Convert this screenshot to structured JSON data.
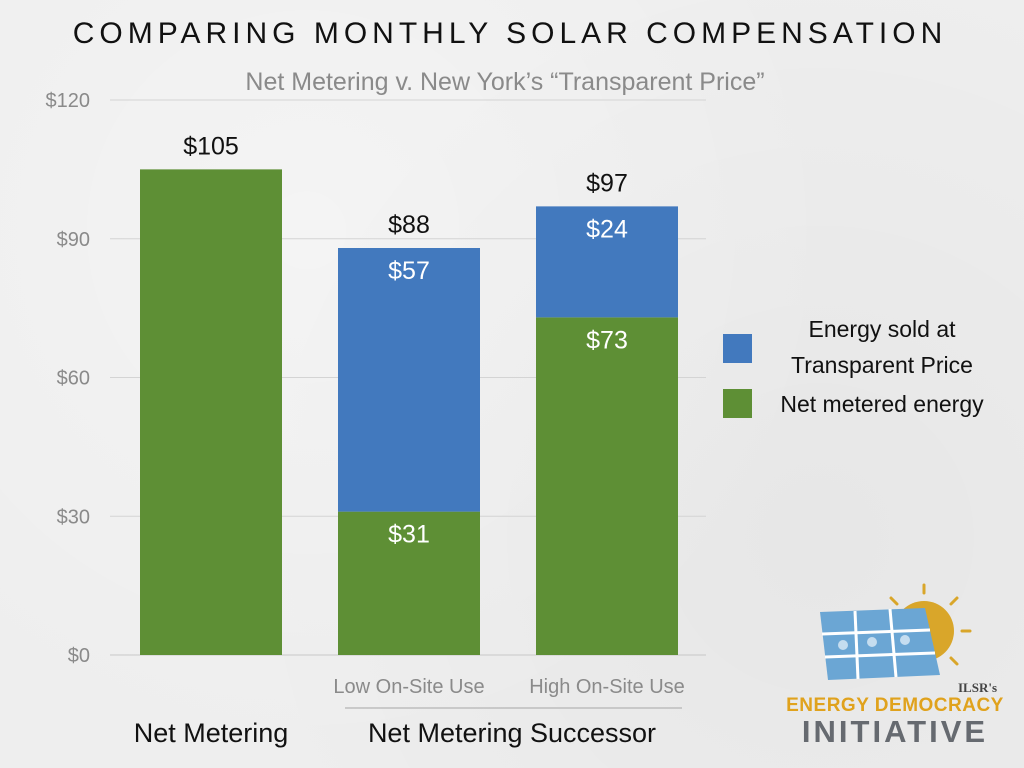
{
  "chart_data": {
    "type": "bar",
    "stacked": true,
    "title": "COMPARING MONTHLY SOLAR COMPENSATION",
    "subtitle": "Net Metering v. New York’s “Transparent Price”",
    "ylim": [
      0,
      120
    ],
    "yticks": [
      "$0",
      "$30",
      "$60",
      "$90",
      "$120"
    ],
    "ytick_values": [
      0,
      30,
      60,
      90,
      120
    ],
    "grid": true,
    "legend_position": "right",
    "bars": [
      {
        "group": "Net Metering",
        "sublabel": "",
        "total": 105,
        "total_label": "$105",
        "segments": [
          {
            "series": "Net metered energy",
            "value": 105,
            "label": ""
          }
        ]
      },
      {
        "group": "Net Metering Successor",
        "sublabel": "Low On-Site Use",
        "total": 88,
        "total_label": "$88",
        "segments": [
          {
            "series": "Net metered energy",
            "value": 31,
            "label": "$31"
          },
          {
            "series": "Energy sold at Transparent Price",
            "value": 57,
            "label": "$57"
          }
        ]
      },
      {
        "group": "Net Metering Successor",
        "sublabel": "High On-Site Use",
        "total": 97,
        "total_label": "$97",
        "segments": [
          {
            "series": "Net metered energy",
            "value": 73,
            "label": "$73"
          },
          {
            "series": "Energy sold at Transparent Price",
            "value": 24,
            "label": "$24"
          }
        ]
      }
    ],
    "groups": [
      "Net Metering",
      "Net Metering Successor"
    ],
    "legend": [
      {
        "name": "Energy sold at Transparent Price",
        "lines": [
          "Energy sold at",
          "Transparent Price"
        ],
        "color": "#4279be"
      },
      {
        "name": "Net metered energy",
        "lines": [
          "Net metered energy"
        ],
        "color": "#5e8f35"
      }
    ],
    "colors": {
      "Net metered energy": "#5e8f35",
      "Energy sold at Transparent Price": "#4279be"
    }
  },
  "logo": {
    "small": "ILSR's",
    "line1": "ENERGY DEMOCRACY",
    "line2": "INITIATIVE"
  }
}
